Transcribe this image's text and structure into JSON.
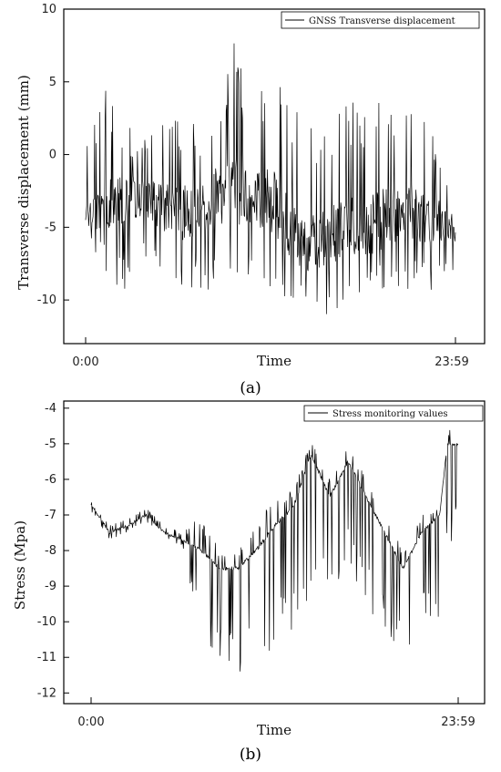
{
  "chart_data": [
    {
      "type": "line",
      "panel_label": "(a)",
      "xlabel": "Time",
      "ylabel": "Transverse displacement (mm)",
      "x_ticks": [
        "0:00",
        "23:59"
      ],
      "ylim": [
        -13,
        10
      ],
      "y_ticks": [
        10,
        5,
        0,
        -5,
        -10
      ],
      "legend": "GNSS Transverse displacement",
      "series": [
        {
          "name": "GNSS Transverse displacement",
          "segments": [
            {
              "t": 0.0,
              "base": -4.0,
              "lo": -6.0,
              "hi": 0.5
            },
            {
              "t": 0.05,
              "base": -3.5,
              "lo": -8.0,
              "hi": 5.0
            },
            {
              "t": 0.1,
              "base": -3.0,
              "lo": -9.5,
              "hi": 2.5
            },
            {
              "t": 0.15,
              "base": -3.0,
              "lo": -8.0,
              "hi": 1.0
            },
            {
              "t": 0.2,
              "base": -3.5,
              "lo": -8.5,
              "hi": 2.0
            },
            {
              "t": 0.25,
              "base": -4.0,
              "lo": -10.5,
              "hi": 3.0
            },
            {
              "t": 0.3,
              "base": -4.0,
              "lo": -9.0,
              "hi": 2.0
            },
            {
              "t": 0.35,
              "base": -3.0,
              "lo": -10.0,
              "hi": 4.0
            },
            {
              "t": 0.4,
              "base": -2.5,
              "lo": -8.0,
              "hi": 8.2
            },
            {
              "t": 0.45,
              "base": -3.0,
              "lo": -9.0,
              "hi": 3.5
            },
            {
              "t": 0.5,
              "base": -3.0,
              "lo": -9.5,
              "hi": 5.5
            },
            {
              "t": 0.55,
              "base": -5.0,
              "lo": -10.5,
              "hi": 4.0
            },
            {
              "t": 0.6,
              "base": -6.0,
              "lo": -11.0,
              "hi": 2.5
            },
            {
              "t": 0.65,
              "base": -6.0,
              "lo": -11.0,
              "hi": 3.0
            },
            {
              "t": 0.7,
              "base": -5.0,
              "lo": -10.5,
              "hi": 4.0
            },
            {
              "t": 0.75,
              "base": -5.0,
              "lo": -10.0,
              "hi": 3.5
            },
            {
              "t": 0.8,
              "base": -4.5,
              "lo": -9.5,
              "hi": 5.0
            },
            {
              "t": 0.85,
              "base": -4.0,
              "lo": -10.0,
              "hi": 2.0
            },
            {
              "t": 0.9,
              "base": -4.0,
              "lo": -9.0,
              "hi": 5.0
            },
            {
              "t": 0.95,
              "base": -4.5,
              "lo": -9.5,
              "hi": 1.0
            },
            {
              "t": 1.0,
              "base": -5.0,
              "lo": -8.0,
              "hi": -1.5
            }
          ]
        }
      ]
    },
    {
      "type": "line",
      "panel_label": "(b)",
      "xlabel": "Time",
      "ylabel": "Stress (Mpa)",
      "x_ticks": [
        "0:00",
        "23:59"
      ],
      "ylim": [
        -12.3,
        -3.8
      ],
      "y_ticks": [
        -4,
        -5,
        -6,
        -7,
        -8,
        -9,
        -10,
        -11,
        -12
      ],
      "legend": "Stress monitoring values",
      "series": [
        {
          "name": "Stress monitoring values",
          "segments": [
            {
              "t": 0.0,
              "base": -6.7,
              "lo": -6.9,
              "hi": -6.6
            },
            {
              "t": 0.05,
              "base": -7.5,
              "lo": -7.7,
              "hi": -7.3
            },
            {
              "t": 0.1,
              "base": -7.3,
              "lo": -7.5,
              "hi": -7.1
            },
            {
              "t": 0.15,
              "base": -7.0,
              "lo": -7.2,
              "hi": -6.8
            },
            {
              "t": 0.2,
              "base": -7.5,
              "lo": -7.7,
              "hi": -7.3
            },
            {
              "t": 0.25,
              "base": -7.7,
              "lo": -7.9,
              "hi": -7.5
            },
            {
              "t": 0.3,
              "base": -8.0,
              "lo": -10.5,
              "hi": -7.0
            },
            {
              "t": 0.35,
              "base": -8.5,
              "lo": -11.3,
              "hi": -8.0
            },
            {
              "t": 0.4,
              "base": -8.5,
              "lo": -11.5,
              "hi": -8.0
            },
            {
              "t": 0.45,
              "base": -8.0,
              "lo": -11.2,
              "hi": -7.3
            },
            {
              "t": 0.5,
              "base": -7.3,
              "lo": -10.8,
              "hi": -6.5
            },
            {
              "t": 0.55,
              "base": -6.8,
              "lo": -10.3,
              "hi": -6.3
            },
            {
              "t": 0.6,
              "base": -5.3,
              "lo": -9.5,
              "hi": -4.9
            },
            {
              "t": 0.65,
              "base": -6.5,
              "lo": -9.3,
              "hi": -6.0
            },
            {
              "t": 0.7,
              "base": -5.5,
              "lo": -8.5,
              "hi": -5.0
            },
            {
              "t": 0.75,
              "base": -6.5,
              "lo": -9.5,
              "hi": -6.0
            },
            {
              "t": 0.8,
              "base": -7.5,
              "lo": -10.5,
              "hi": -7.0
            },
            {
              "t": 0.85,
              "base": -8.5,
              "lo": -11.2,
              "hi": -8.0
            },
            {
              "t": 0.9,
              "base": -7.5,
              "lo": -10.0,
              "hi": -7.0
            },
            {
              "t": 0.95,
              "base": -7.0,
              "lo": -10.3,
              "hi": -6.7
            },
            {
              "t": 0.97,
              "base": -5.0,
              "lo": -8.0,
              "hi": -4.6
            },
            {
              "t": 1.0,
              "base": -5.0,
              "lo": -7.8,
              "hi": -4.6
            }
          ]
        }
      ]
    }
  ]
}
